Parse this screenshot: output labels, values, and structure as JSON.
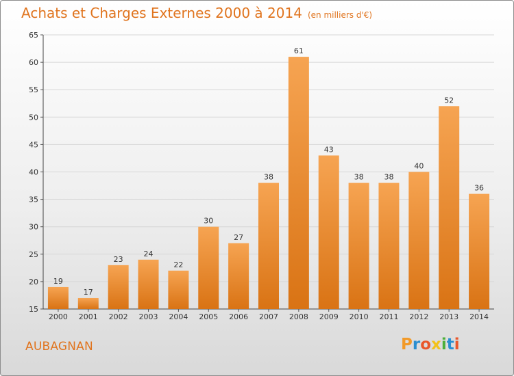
{
  "chart_data": {
    "type": "bar",
    "title": "Achats et Charges Externes 2000 à 2014",
    "subtitle": "(en milliers d'€)",
    "categories": [
      "2000",
      "2001",
      "2002",
      "2003",
      "2004",
      "2005",
      "2006",
      "2007",
      "2008",
      "2009",
      "2010",
      "2011",
      "2012",
      "2013",
      "2014"
    ],
    "values": [
      19,
      17,
      23,
      24,
      22,
      30,
      27,
      38,
      61,
      43,
      38,
      38,
      40,
      52,
      36
    ],
    "ylim": [
      15,
      65
    ],
    "yticks": [
      15,
      20,
      25,
      30,
      35,
      40,
      45,
      50,
      55,
      60,
      65
    ],
    "grid": true,
    "legend": "none",
    "colors": {
      "bar_top": "#f6a452",
      "bar_bottom": "#d97314",
      "accent": "#e0741e"
    }
  },
  "footer": {
    "commune": "AUBAGNAN"
  },
  "logo": {
    "text": "Proxiti",
    "letters": [
      {
        "char": "P",
        "color": "#f29a28"
      },
      {
        "char": "r",
        "color": "#2a8fd0"
      },
      {
        "char": "o",
        "color": "#e9572b"
      },
      {
        "char": "x",
        "color": "#f3c21a"
      },
      {
        "char": "i",
        "color": "#4caf3a"
      },
      {
        "char": "t",
        "color": "#2a8fd0"
      },
      {
        "char": "i",
        "color": "#e9572b"
      }
    ]
  }
}
